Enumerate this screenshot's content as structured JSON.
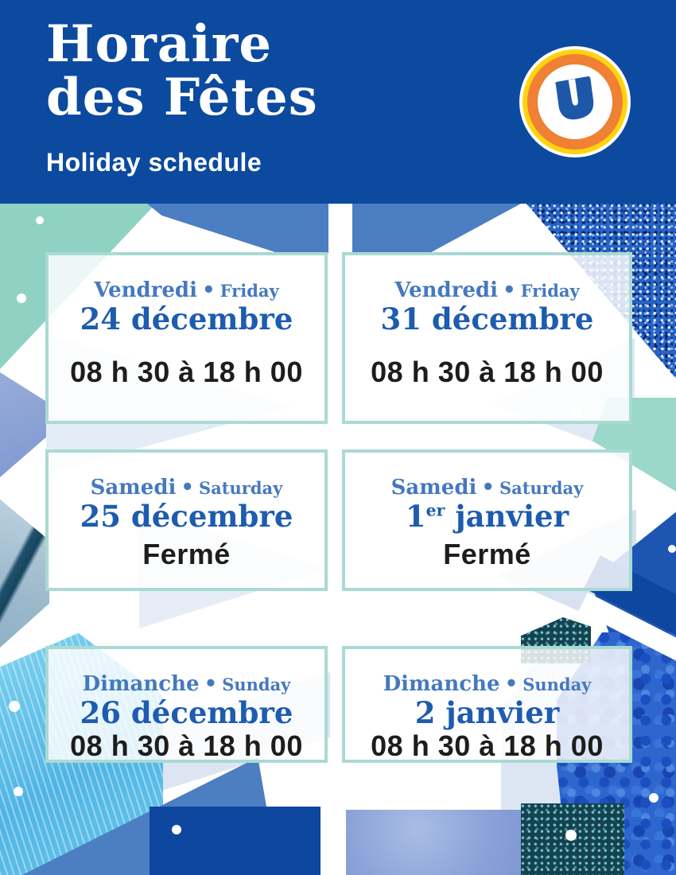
{
  "header": {
    "title_line1": "Horaire",
    "title_line2": "des Fêtes",
    "subtitle": "Holiday schedule"
  },
  "logo": {
    "letter": "U"
  },
  "separator": "•",
  "cards": [
    {
      "day_fr": "Vendredi",
      "day_en": "Friday",
      "date_main": "24 décembre",
      "date_sup": "",
      "date_rest": "",
      "hours": "08 h 30 à 18 h 00"
    },
    {
      "day_fr": "Vendredi",
      "day_en": "Friday",
      "date_main": "31 décembre",
      "date_sup": "",
      "date_rest": "",
      "hours": "08 h 30 à 18 h 00"
    },
    {
      "day_fr": "Samedi",
      "day_en": "Saturday",
      "date_main": "25 décembre",
      "date_sup": "",
      "date_rest": "",
      "hours": "Fermé"
    },
    {
      "day_fr": "Samedi",
      "day_en": "Saturday",
      "date_main": "1",
      "date_sup": "er",
      "date_rest": " janvier",
      "hours": "Fermé"
    },
    {
      "day_fr": "Dimanche",
      "day_en": "Sunday",
      "date_main": "26 décembre",
      "date_sup": "",
      "date_rest": "",
      "hours": "08 h 30 à 18 h 00"
    },
    {
      "day_fr": "Dimanche",
      "day_en": "Sunday",
      "date_main": "2 janvier",
      "date_sup": "",
      "date_rest": "",
      "hours": "08 h 30 à 18 h 00"
    }
  ],
  "colors": {
    "header-blue": "#0C4AA0",
    "day-blue": "#4579BE",
    "date-blue": "#1D5CAE",
    "hours-black": "#1D1D1B",
    "card-border": "#A9DAD3",
    "mint": "#8FD2C4",
    "mid-blue": "#4C7EC2",
    "royal-blue": "#1E55B2",
    "navy": "#0E47A0",
    "ice-blue": "#DCE6F3",
    "logo-yellow": "#FFD40E",
    "logo-orange": "#EF8034",
    "logo-blue": "#1D57A8"
  }
}
